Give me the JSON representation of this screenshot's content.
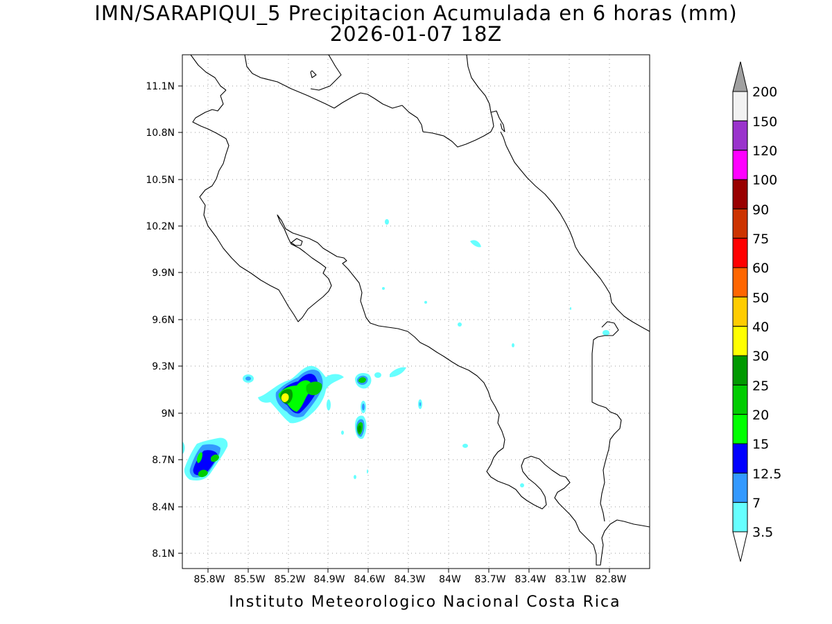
{
  "title_line1": "IMN/SARAPIQUI_5 Precipitacion Acumulada en 6 horas (mm)",
  "title_line2": "2026-01-07 18Z",
  "footer": "Instituto Meteorologico Nacional Costa Rica",
  "map": {
    "lat_labels": [
      "11.1N",
      "10.8N",
      "10.5N",
      "10.2N",
      "9.9N",
      "9.6N",
      "9.3N",
      "9N",
      "8.7N",
      "8.4N",
      "8.1N"
    ],
    "lon_labels": [
      "85.8W",
      "85.5W",
      "85.2W",
      "84.9W",
      "84.6W",
      "84.3W",
      "84W",
      "83.7W",
      "83.4W",
      "83.1W",
      "82.8W"
    ],
    "grid": "dotted"
  },
  "colorbar": {
    "labels": [
      "200",
      "150",
      "120",
      "100",
      "90",
      "75",
      "60",
      "50",
      "40",
      "30",
      "25",
      "20",
      "15",
      "12.5",
      "7",
      "3.5"
    ],
    "colors": [
      "#f2f2f2",
      "#9a33cc",
      "#ff00ff",
      "#990000",
      "#cc3300",
      "#ff0000",
      "#ff6600",
      "#ffcc00",
      "#ffff00",
      "#009900",
      "#00cc00",
      "#00ff00",
      "#0000ff",
      "#3399ff",
      "#66ffff"
    ],
    "over_color": "#a0a0a0",
    "under_color": "#ffffff"
  },
  "palette": {
    "light_cyan": "#66ffff",
    "light_blue": "#3399ff",
    "blue": "#0000ff",
    "light_green": "#00ff00",
    "green": "#00cc00",
    "dark_green": "#009900",
    "yellow": "#ffff00"
  }
}
